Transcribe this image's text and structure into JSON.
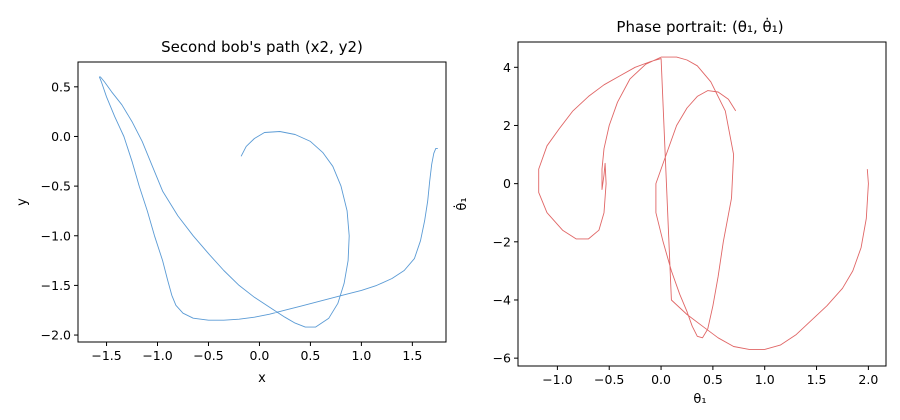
{
  "chart_data": [
    {
      "type": "line",
      "title": "Second bob's path (x2, y2)",
      "xlabel": "x",
      "ylabel": "y",
      "xlim": [
        -1.78,
        1.83
      ],
      "ylim": [
        -2.07,
        0.75
      ],
      "xticks": [
        -1.5,
        -1.0,
        -0.5,
        0.0,
        0.5,
        1.0,
        1.5
      ],
      "xtick_labels": [
        "−1.5",
        "−1.0",
        "−0.5",
        "0.0",
        "0.5",
        "1.0",
        "1.5"
      ],
      "yticks": [
        0.5,
        0.0,
        -0.5,
        -1.0,
        -1.5,
        -2.0
      ],
      "ytick_labels": [
        "0.5",
        "0.0",
        "−0.5",
        "−1.0",
        "−1.5",
        "−2.0"
      ],
      "grid": false,
      "color": "#5b9bd5",
      "series": [
        {
          "x": [
            -0.18,
            -0.13,
            -0.05,
            0.05,
            0.2,
            0.35,
            0.5,
            0.62,
            0.72,
            0.8,
            0.86,
            0.88,
            0.87,
            0.83,
            0.77,
            0.68,
            0.55,
            0.45,
            0.35,
            0.25,
            0.1,
            -0.05,
            -0.2,
            -0.35,
            -0.5,
            -0.65,
            -0.8,
            -0.95,
            -1.05,
            -1.15,
            -1.25,
            -1.35,
            -1.45,
            -1.52,
            -1.56,
            -1.57,
            -1.55,
            -1.5,
            -1.42,
            -1.33,
            -1.25,
            -1.18,
            -1.1,
            -1.03,
            -0.95,
            -0.9,
            -0.86,
            -0.82,
            -0.75,
            -0.65,
            -0.5,
            -0.35,
            -0.2,
            -0.05,
            0.1,
            0.25,
            0.4,
            0.55,
            0.7,
            0.85,
            1.0,
            1.15,
            1.3,
            1.42,
            1.52,
            1.58,
            1.62,
            1.65,
            1.67,
            1.69,
            1.71,
            1.73,
            1.75
          ],
          "y": [
            -0.2,
            -0.1,
            -0.02,
            0.04,
            0.05,
            0.02,
            -0.05,
            -0.16,
            -0.3,
            -0.5,
            -0.75,
            -1.0,
            -1.25,
            -1.48,
            -1.68,
            -1.83,
            -1.92,
            -1.92,
            -1.88,
            -1.82,
            -1.72,
            -1.62,
            -1.5,
            -1.35,
            -1.18,
            -1.0,
            -0.8,
            -0.55,
            -0.3,
            -0.05,
            0.15,
            0.32,
            0.45,
            0.55,
            0.6,
            0.6,
            0.55,
            0.4,
            0.2,
            0.0,
            -0.25,
            -0.5,
            -0.75,
            -1.0,
            -1.25,
            -1.45,
            -1.6,
            -1.7,
            -1.78,
            -1.83,
            -1.85,
            -1.85,
            -1.84,
            -1.82,
            -1.79,
            -1.75,
            -1.71,
            -1.67,
            -1.63,
            -1.59,
            -1.55,
            -1.5,
            -1.43,
            -1.35,
            -1.23,
            -1.05,
            -0.85,
            -0.65,
            -0.45,
            -0.28,
            -0.17,
            -0.12,
            -0.12
          ]
        }
      ]
    },
    {
      "type": "line",
      "title": "Phase portrait: (θ₁, θ̇₁)",
      "xlabel": "θ₁",
      "ylabel": "θ̇₁",
      "xlim": [
        -1.38,
        2.17
      ],
      "ylim": [
        -6.27,
        4.87
      ],
      "xticks": [
        -1.0,
        -0.5,
        0.0,
        0.5,
        1.0,
        1.5,
        2.0
      ],
      "xtick_labels": [
        "−1.0",
        "−0.5",
        "0.0",
        "0.5",
        "1.0",
        "1.5",
        "2.0"
      ],
      "yticks": [
        4,
        2,
        0,
        -2,
        -4,
        -6
      ],
      "ytick_labels": [
        "4",
        "2",
        "0",
        "−2",
        "−4",
        "−6"
      ],
      "grid": false,
      "color": "#e06666",
      "series": [
        {
          "x": [
            0.72,
            0.65,
            0.55,
            0.45,
            0.35,
            0.25,
            0.15,
            0.05,
            -0.05,
            -0.05,
            0.02,
            0.1,
            0.18,
            0.25,
            0.3,
            0.35,
            0.4,
            0.45,
            0.5,
            0.55,
            0.6,
            0.68,
            0.7,
            0.62,
            0.48,
            0.35,
            0.25,
            0.15,
            0.0,
            -0.15,
            -0.3,
            -0.42,
            -0.5,
            -0.55,
            -0.57,
            -0.57,
            -0.55,
            -0.54,
            -0.53,
            -0.55,
            -0.6,
            -0.7,
            -0.82,
            -0.95,
            -1.1,
            -1.18,
            -1.18,
            -1.1,
            -0.98,
            -0.85,
            -0.7,
            -0.55,
            -0.4,
            -0.25,
            -0.1,
            0.0,
            0.1,
            0.25,
            0.4,
            0.55,
            0.7,
            0.85,
            1.0,
            1.15,
            1.3,
            1.45,
            1.6,
            1.75,
            1.85,
            1.93,
            1.98,
            2.0,
            1.99
          ],
          "y": [
            2.5,
            2.9,
            3.15,
            3.2,
            3.0,
            2.6,
            2.0,
            1.0,
            0.0,
            -1.0,
            -2.0,
            -3.0,
            -3.8,
            -4.4,
            -4.9,
            -5.25,
            -5.3,
            -5.0,
            -4.2,
            -3.2,
            -2.0,
            -0.5,
            1.0,
            2.5,
            3.5,
            4.05,
            4.25,
            4.35,
            4.35,
            4.1,
            3.6,
            2.8,
            2.0,
            1.2,
            0.5,
            -0.2,
            0.3,
            0.7,
            0.0,
            -1.0,
            -1.6,
            -1.9,
            -1.9,
            -1.6,
            -1.0,
            -0.3,
            0.5,
            1.3,
            1.9,
            2.5,
            3.0,
            3.4,
            3.7,
            4.0,
            4.2,
            4.3,
            -4.0,
            -4.5,
            -4.9,
            -5.3,
            -5.6,
            -5.7,
            -5.7,
            -5.55,
            -5.2,
            -4.7,
            -4.2,
            -3.6,
            -3.0,
            -2.2,
            -1.2,
            0.0,
            0.5
          ]
        }
      ]
    }
  ]
}
